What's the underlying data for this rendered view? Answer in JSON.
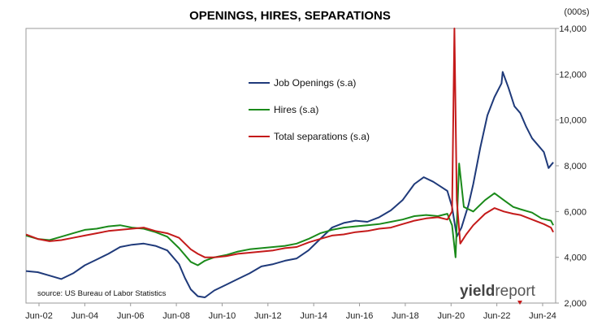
{
  "chart_data": {
    "type": "line",
    "title": "OPENINGS, HIRES, SEPARATIONS",
    "unit_label": "(000s)",
    "source": "source: US Bureau of Labor Statistics",
    "brand": {
      "part1": "yield",
      "part2": "report"
    },
    "x_ticks": [
      "Jun-02",
      "Jun-04",
      "Jun-06",
      "Jun-08",
      "Jun-10",
      "Jun-12",
      "Jun-14",
      "Jun-16",
      "Jun-18",
      "Jun-20",
      "Jun-22",
      "Jun-24"
    ],
    "y_ticks": [
      "2,000",
      "4,000",
      "6,000",
      "8,000",
      "10,000",
      "12,000",
      "14,000"
    ],
    "ylim": [
      2000,
      14000
    ],
    "xlim": [
      2002.0,
      2024.5
    ],
    "y_axis_side": "right",
    "grid": false,
    "legend_position": "center-left",
    "series": [
      {
        "name": "Job Openings (s.a)",
        "color": "#1f3a7a",
        "points": [
          [
            2002.0,
            3400
          ],
          [
            2002.5,
            3350
          ],
          [
            2003.0,
            3200
          ],
          [
            2003.5,
            3050
          ],
          [
            2004.0,
            3300
          ],
          [
            2004.5,
            3650
          ],
          [
            2005.0,
            3900
          ],
          [
            2005.5,
            4150
          ],
          [
            2006.0,
            4450
          ],
          [
            2006.5,
            4550
          ],
          [
            2007.0,
            4600
          ],
          [
            2007.5,
            4500
          ],
          [
            2008.0,
            4300
          ],
          [
            2008.5,
            3700
          ],
          [
            2008.75,
            3100
          ],
          [
            2009.0,
            2600
          ],
          [
            2009.3,
            2300
          ],
          [
            2009.6,
            2250
          ],
          [
            2010.0,
            2550
          ],
          [
            2010.5,
            2800
          ],
          [
            2011.0,
            3050
          ],
          [
            2011.5,
            3300
          ],
          [
            2012.0,
            3600
          ],
          [
            2012.5,
            3700
          ],
          [
            2013.0,
            3850
          ],
          [
            2013.5,
            3950
          ],
          [
            2014.0,
            4300
          ],
          [
            2014.5,
            4800
          ],
          [
            2015.0,
            5300
          ],
          [
            2015.5,
            5500
          ],
          [
            2016.0,
            5600
          ],
          [
            2016.5,
            5550
          ],
          [
            2017.0,
            5750
          ],
          [
            2017.5,
            6050
          ],
          [
            2018.0,
            6500
          ],
          [
            2018.5,
            7200
          ],
          [
            2018.9,
            7500
          ],
          [
            2019.3,
            7300
          ],
          [
            2019.6,
            7100
          ],
          [
            2019.9,
            6900
          ],
          [
            2020.1,
            6200
          ],
          [
            2020.3,
            4900
          ],
          [
            2020.5,
            5300
          ],
          [
            2020.8,
            6300
          ],
          [
            2021.0,
            7200
          ],
          [
            2021.3,
            8800
          ],
          [
            2021.6,
            10200
          ],
          [
            2021.9,
            11000
          ],
          [
            2022.2,
            11600
          ],
          [
            2022.25,
            12100
          ],
          [
            2022.5,
            11400
          ],
          [
            2022.75,
            10600
          ],
          [
            2023.0,
            10300
          ],
          [
            2023.25,
            9700
          ],
          [
            2023.5,
            9200
          ],
          [
            2023.75,
            8900
          ],
          [
            2024.0,
            8600
          ],
          [
            2024.2,
            7900
          ],
          [
            2024.4,
            8150
          ]
        ]
      },
      {
        "name": "Hires (s.a)",
        "color": "#1a8a1a",
        "points": [
          [
            2002.0,
            4950
          ],
          [
            2002.5,
            4800
          ],
          [
            2003.0,
            4750
          ],
          [
            2003.5,
            4900
          ],
          [
            2004.0,
            5050
          ],
          [
            2004.5,
            5200
          ],
          [
            2005.0,
            5250
          ],
          [
            2005.5,
            5350
          ],
          [
            2006.0,
            5400
          ],
          [
            2006.5,
            5300
          ],
          [
            2007.0,
            5250
          ],
          [
            2007.5,
            5100
          ],
          [
            2008.0,
            4900
          ],
          [
            2008.5,
            4400
          ],
          [
            2009.0,
            3800
          ],
          [
            2009.3,
            3650
          ],
          [
            2009.6,
            3850
          ],
          [
            2010.0,
            4000
          ],
          [
            2010.5,
            4100
          ],
          [
            2011.0,
            4250
          ],
          [
            2011.5,
            4350
          ],
          [
            2012.0,
            4400
          ],
          [
            2012.5,
            4450
          ],
          [
            2013.0,
            4500
          ],
          [
            2013.5,
            4600
          ],
          [
            2014.0,
            4800
          ],
          [
            2014.5,
            5050
          ],
          [
            2015.0,
            5200
          ],
          [
            2015.5,
            5300
          ],
          [
            2016.0,
            5350
          ],
          [
            2016.5,
            5400
          ],
          [
            2017.0,
            5450
          ],
          [
            2017.5,
            5550
          ],
          [
            2018.0,
            5650
          ],
          [
            2018.5,
            5800
          ],
          [
            2019.0,
            5850
          ],
          [
            2019.5,
            5800
          ],
          [
            2019.9,
            5900
          ],
          [
            2020.1,
            5400
          ],
          [
            2020.25,
            4000
          ],
          [
            2020.4,
            8100
          ],
          [
            2020.6,
            6200
          ],
          [
            2021.0,
            6000
          ],
          [
            2021.5,
            6500
          ],
          [
            2021.9,
            6800
          ],
          [
            2022.3,
            6500
          ],
          [
            2022.7,
            6200
          ],
          [
            2023.0,
            6100
          ],
          [
            2023.5,
            5950
          ],
          [
            2023.9,
            5700
          ],
          [
            2024.3,
            5600
          ],
          [
            2024.4,
            5400
          ]
        ]
      },
      {
        "name": "Total separations (s.a)",
        "color": "#c41a1a",
        "points": [
          [
            2002.0,
            5000
          ],
          [
            2002.5,
            4800
          ],
          [
            2003.0,
            4700
          ],
          [
            2003.5,
            4750
          ],
          [
            2004.0,
            4850
          ],
          [
            2004.5,
            4950
          ],
          [
            2005.0,
            5050
          ],
          [
            2005.5,
            5150
          ],
          [
            2006.0,
            5200
          ],
          [
            2006.5,
            5250
          ],
          [
            2007.0,
            5300
          ],
          [
            2007.5,
            5150
          ],
          [
            2008.0,
            5050
          ],
          [
            2008.5,
            4850
          ],
          [
            2009.0,
            4350
          ],
          [
            2009.3,
            4150
          ],
          [
            2009.6,
            4000
          ],
          [
            2010.0,
            4000
          ],
          [
            2010.5,
            4050
          ],
          [
            2011.0,
            4150
          ],
          [
            2011.5,
            4200
          ],
          [
            2012.0,
            4250
          ],
          [
            2012.5,
            4300
          ],
          [
            2013.0,
            4400
          ],
          [
            2013.5,
            4450
          ],
          [
            2014.0,
            4650
          ],
          [
            2014.5,
            4800
          ],
          [
            2015.0,
            4950
          ],
          [
            2015.5,
            5000
          ],
          [
            2016.0,
            5100
          ],
          [
            2016.5,
            5150
          ],
          [
            2017.0,
            5250
          ],
          [
            2017.5,
            5300
          ],
          [
            2018.0,
            5450
          ],
          [
            2018.5,
            5600
          ],
          [
            2019.0,
            5700
          ],
          [
            2019.5,
            5750
          ],
          [
            2019.9,
            5650
          ],
          [
            2020.1,
            6000
          ],
          [
            2020.2,
            14000
          ],
          [
            2020.3,
            6500
          ],
          [
            2020.45,
            4600
          ],
          [
            2020.7,
            5000
          ],
          [
            2021.0,
            5400
          ],
          [
            2021.5,
            5900
          ],
          [
            2021.9,
            6150
          ],
          [
            2022.3,
            6000
          ],
          [
            2022.7,
            5900
          ],
          [
            2023.0,
            5850
          ],
          [
            2023.5,
            5650
          ],
          [
            2024.0,
            5450
          ],
          [
            2024.3,
            5300
          ],
          [
            2024.4,
            5100
          ]
        ]
      }
    ]
  }
}
